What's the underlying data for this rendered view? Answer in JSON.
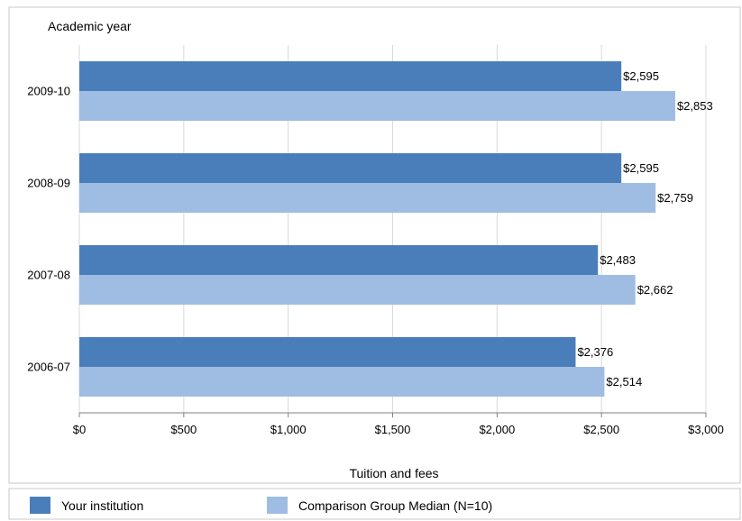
{
  "chart_data": {
    "type": "bar",
    "orientation": "horizontal",
    "title": "",
    "ylabel": "Academic year",
    "xlabel": "Tuition and fees",
    "categories": [
      "2009-10",
      "2008-09",
      "2007-08",
      "2006-07"
    ],
    "series": [
      {
        "name": "Your institution",
        "color": "#4a7ebb",
        "values": [
          2595,
          2595,
          2483,
          2376
        ],
        "labels": [
          "$2,595",
          "$2,595",
          "$2,483",
          "$2,376"
        ]
      },
      {
        "name": "Comparison Group Median (N=10)",
        "color": "#9fbde2",
        "values": [
          2853,
          2759,
          2662,
          2514
        ],
        "labels": [
          "$2,853",
          "$2,759",
          "$2,662",
          "$2,514"
        ]
      }
    ],
    "xlim": [
      0,
      3000
    ],
    "xticks": [
      0,
      500,
      1000,
      1500,
      2000,
      2500,
      3000
    ],
    "xtick_labels": [
      "$0",
      "$500",
      "$1,000",
      "$1,500",
      "$2,000",
      "$2,500",
      "$3,000"
    ],
    "grid": true,
    "legend_position": "bottom"
  }
}
